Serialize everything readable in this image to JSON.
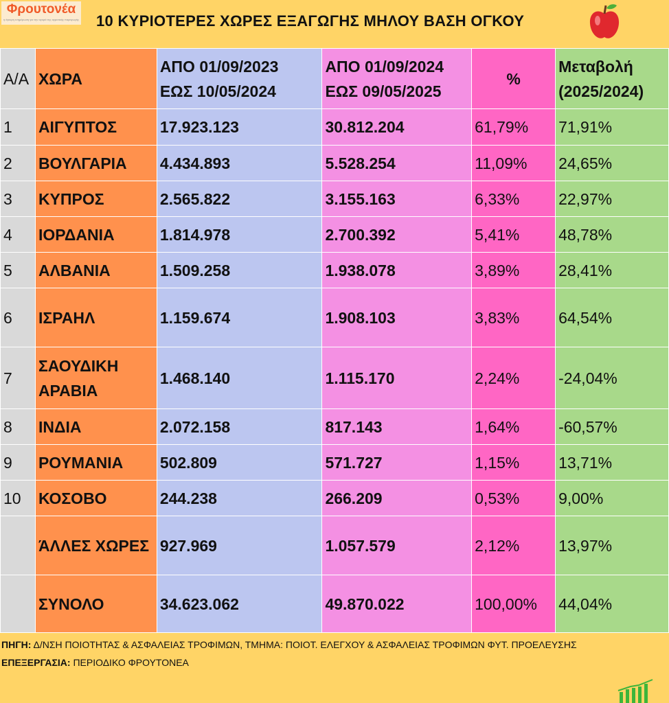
{
  "logo": {
    "name": "Φρουτονέα",
    "tagline": "η έγκυρη ενημέρωση για την αγορά της αγροτικής παραγωγής"
  },
  "title": "10 ΚΥΡΙΟΤΕΡΕΣ ΧΩΡΕΣ ΕΞΑΓΩΓΗΣ ΜΗΛΟΥ ΒΑΣΗ ΟΓΚΟΥ",
  "header": {
    "aa": "Α/Α",
    "country": "ΧΩΡΑ",
    "p1a": "ΑΠΟ 01/09/2023",
    "p1b": "ΕΩΣ 10/05/2024",
    "p2a": "ΑΠΟ 01/09/2024",
    "p2b": "ΕΩΣ 09/05/2025",
    "pct": "%",
    "chg1": "Μεταβολή",
    "chg2": "(2025/2024)"
  },
  "rows": [
    {
      "aa": "1",
      "country": "ΑΙΓΥΠΤΟΣ",
      "v1": "17.923.123",
      "v2": "30.812.204",
      "pct": "61,79%",
      "chg": "71,91%"
    },
    {
      "aa": "2",
      "country": "ΒΟΥΛΓΑΡΙΑ",
      "v1": "4.434.893",
      "v2": "5.528.254",
      "pct": "11,09%",
      "chg": "24,65%"
    },
    {
      "aa": "3",
      "country": "ΚΥΠΡΟΣ",
      "v1": "2.565.822",
      "v2": "3.155.163",
      "pct": "6,33%",
      "chg": "22,97%"
    },
    {
      "aa": "4",
      "country": "ΙΟΡΔΑΝΙΑ",
      "v1": "1.814.978",
      "v2": "2.700.392",
      "pct": "5,41%",
      "chg": "48,78%"
    },
    {
      "aa": "5",
      "country": "ΑΛΒΑΝΙΑ",
      "v1": "1.509.258",
      "v2": "1.938.078",
      "pct": "3,89%",
      "chg": "28,41%"
    },
    {
      "aa": "6",
      "country": "ΙΣΡΑΗΛ",
      "v1": "1.159.674",
      "v2": "1.908.103",
      "pct": "3,83%",
      "chg": "64,54%"
    },
    {
      "aa": "7",
      "country": "ΣΑΟΥΔΙΚΗ ΑΡΑΒΙΑ",
      "v1": "1.468.140",
      "v2": "1.115.170",
      "pct": "2,24%",
      "chg": "-24,04%"
    },
    {
      "aa": "8",
      "country": "ΙΝΔΙΑ",
      "v1": "2.072.158",
      "v2": "817.143",
      "pct": "1,64%",
      "chg": "-60,57%"
    },
    {
      "aa": "9",
      "country": "ΡΟΥΜΑΝΙΑ",
      "v1": "502.809",
      "v2": "571.727",
      "pct": "1,15%",
      "chg": "13,71%"
    },
    {
      "aa": "10",
      "country": "ΚΟΣΟΒΟ",
      "v1": "244.238",
      "v2": "266.209",
      "pct": "0,53%",
      "chg": "9,00%"
    },
    {
      "aa": "",
      "country": "ΆΛΛΕΣ ΧΩΡΕΣ",
      "v1": "927.969",
      "v2": "1.057.579",
      "pct": "2,12%",
      "chg": "13,97%"
    },
    {
      "aa": "",
      "country": "ΣΥΝΟΛΟ",
      "v1": "34.623.062",
      "v2": "49.870.022",
      "pct": "100,00%",
      "chg": "44,04%"
    }
  ],
  "footer": {
    "source_label": "ΠΗΓΗ:",
    "source": "Δ/ΝΣΗ ΠΟΙΟΤΗΤΑΣ & ΑΣΦΑΛΕΙΑΣ ΤΡΟΦΙΜΩΝ, ΤΜΗΜΑ: ΠΟΙΟΤ. ΕΛΕΓΧΟΥ & ΑΣΦΑΛΕΙΑΣ ΤΡΟΦΙΜΩΝ ΦΥΤ. ΠΡΟΕΛΕΥΣΗΣ",
    "proc_label": "ΕΠΕΞΕΡΓΑΣΙΑ:",
    "proc": "ΠΕΡΙΟΔΙΚΟ ΦΡΟΥΤΟΝΕΑ"
  }
}
